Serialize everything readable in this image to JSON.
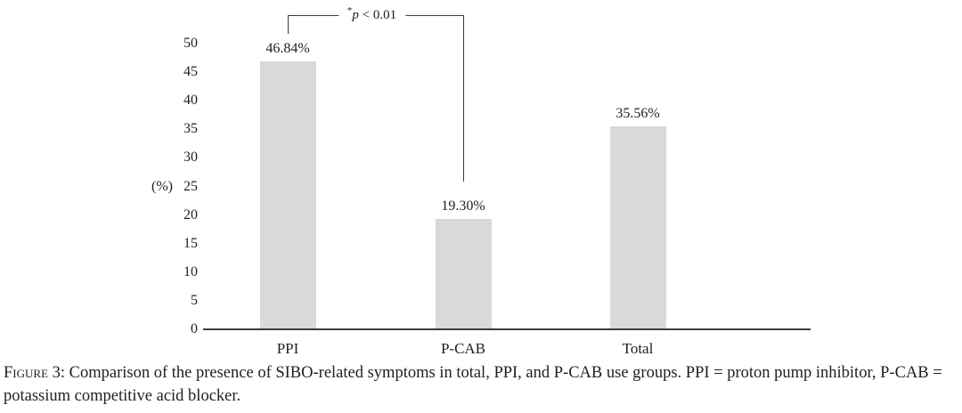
{
  "chart_data": {
    "type": "bar",
    "categories": [
      "PPI",
      "P-CAB",
      "Total"
    ],
    "values": [
      46.84,
      19.3,
      35.56
    ],
    "bar_labels": [
      "46.84%",
      "19.30%",
      "35.56%"
    ],
    "ylabel": "(%)",
    "yticks": [
      0,
      5,
      10,
      15,
      20,
      25,
      30,
      35,
      40,
      45,
      50
    ],
    "ylim": [
      0,
      52
    ],
    "grid": "off",
    "legend": "none",
    "annotation": {
      "star": "*",
      "var": "p",
      "rest": " < 0.01",
      "full": "*p < 0.01",
      "between": [
        "PPI",
        "P-CAB"
      ]
    }
  },
  "colors": {
    "bar": "#d9d9d9",
    "axis": "#3d3d3d",
    "text": "#1f1f1f"
  },
  "caption": {
    "label": "Figure 3:",
    "text": "Comparison of the presence of SIBO-related symptoms in total, PPI, and P-CAB use groups. PPI = proton pump inhibitor, P-CAB = potassium competitive acid blocker."
  }
}
